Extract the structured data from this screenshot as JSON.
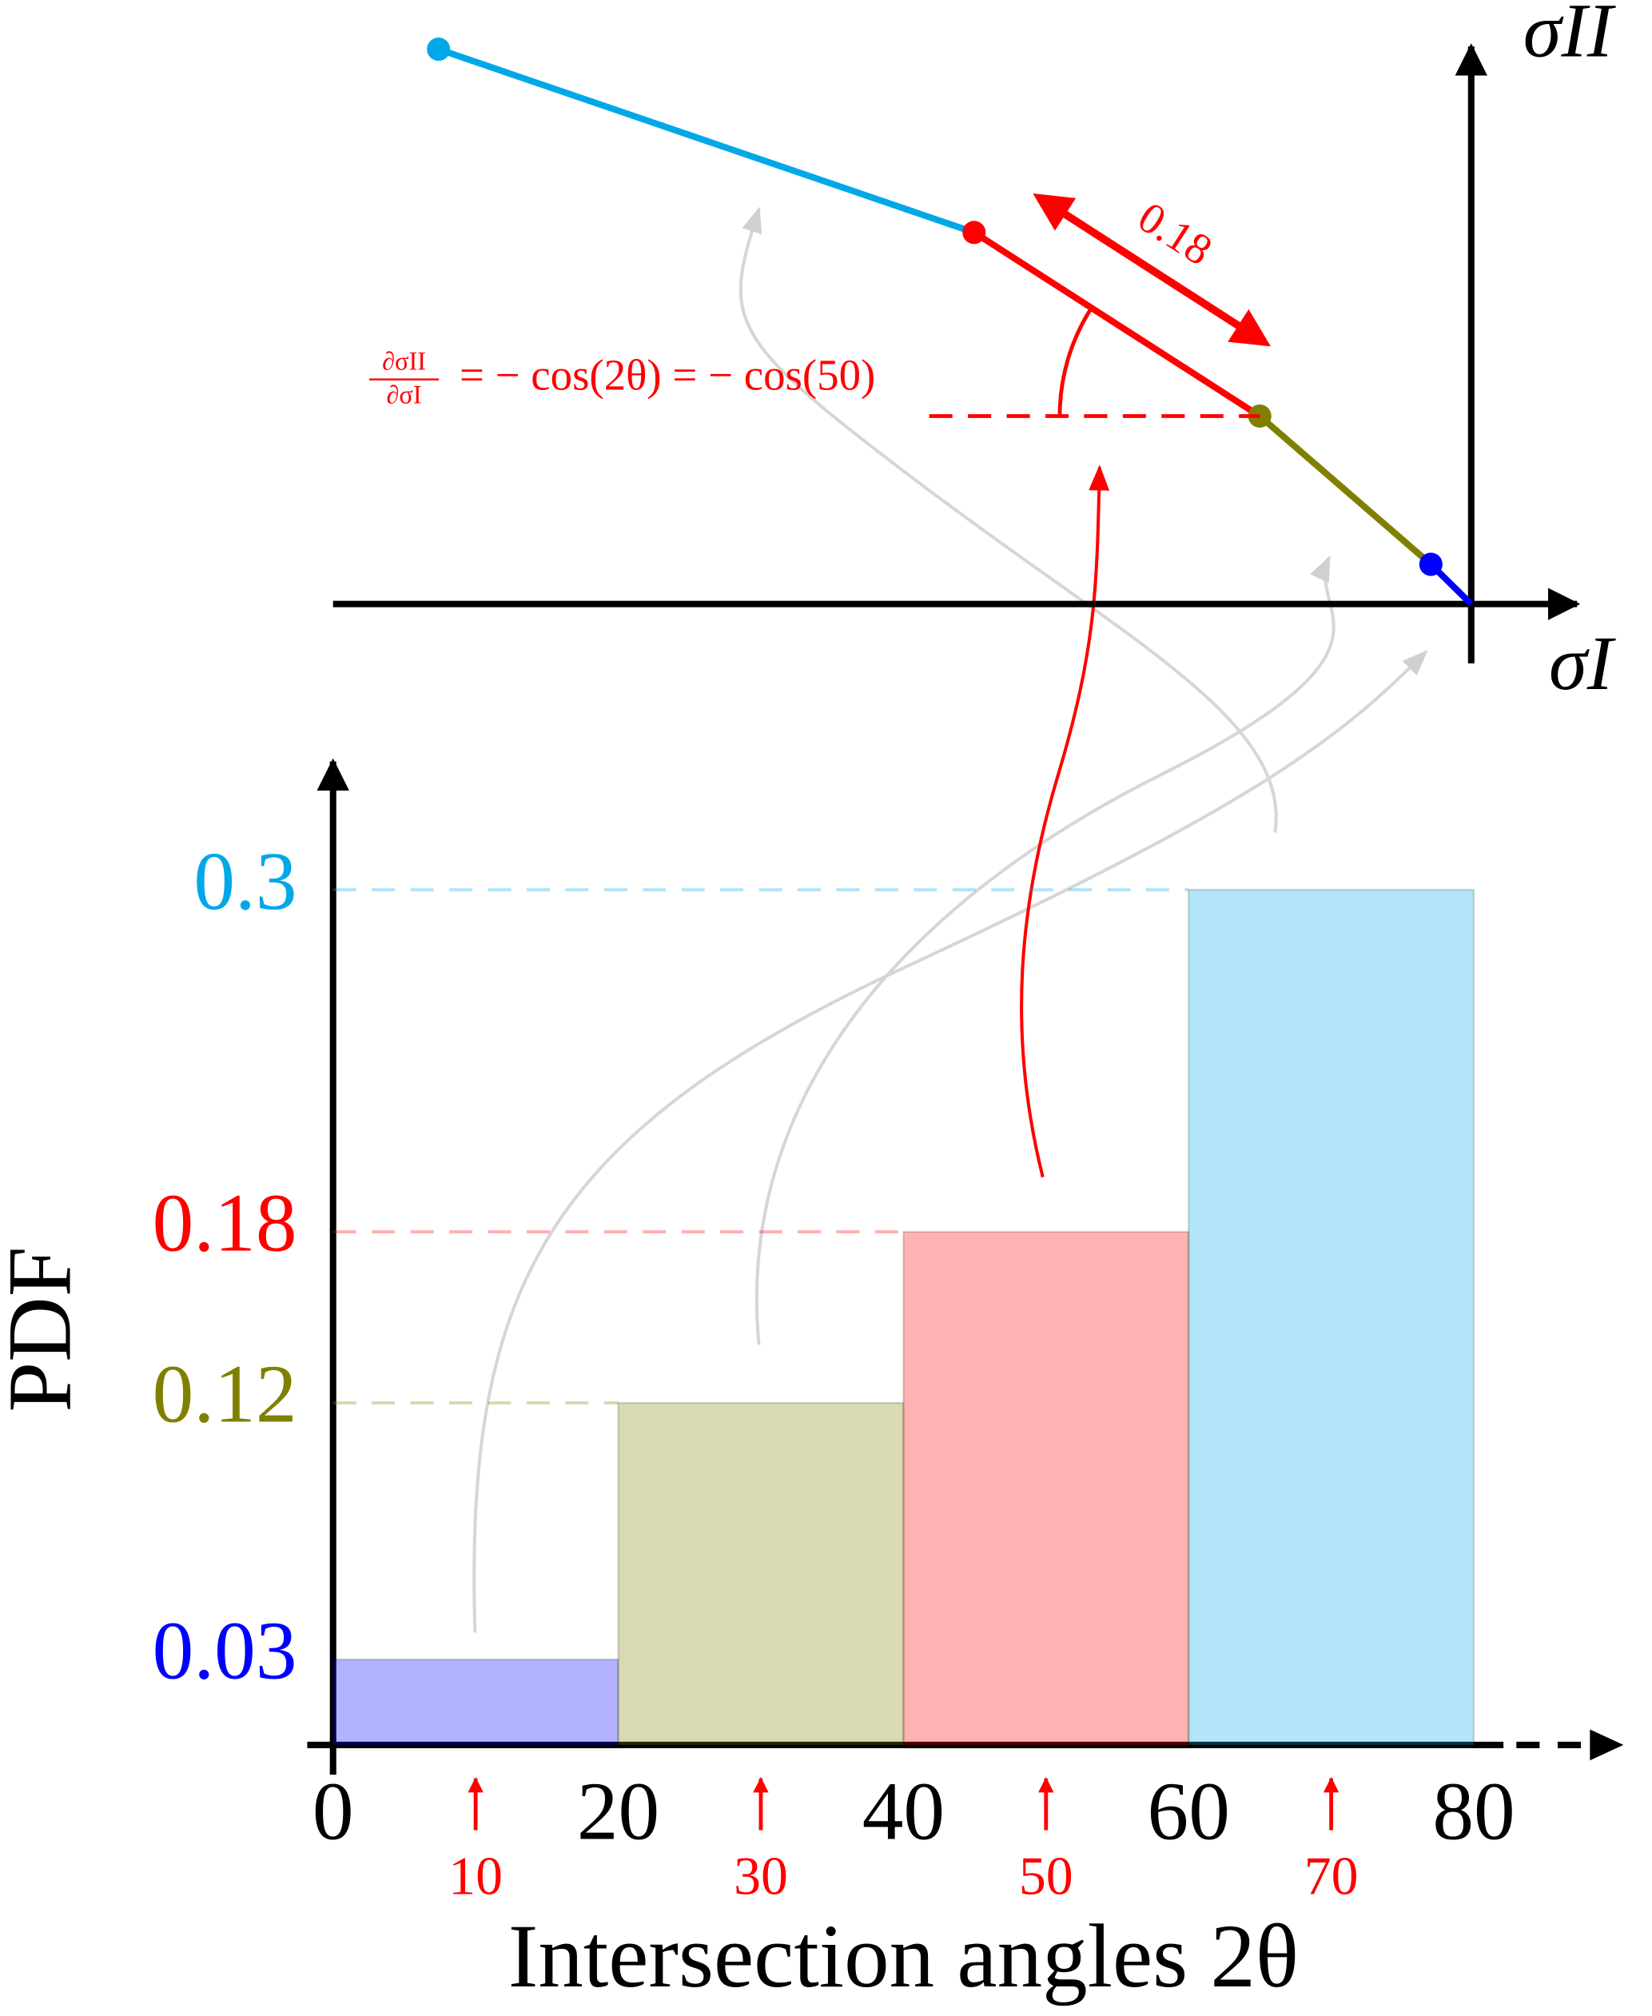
{
  "chart_data": {
    "type": "histogram",
    "xlabel": "Intersection angles 2θ",
    "ylabel": "PDF",
    "bins": [
      0,
      20,
      40,
      60,
      80
    ],
    "values": [
      0.03,
      0.12,
      0.18,
      0.3
    ],
    "colors": [
      "#0000ff",
      "#808000",
      "#ff0000",
      "#00a8e8"
    ],
    "bin_centers": [
      10,
      30,
      50,
      70
    ],
    "xlim": [
      0,
      80
    ],
    "xticks": [
      0,
      20,
      40,
      60,
      80
    ],
    "ylim": [
      0,
      0.345
    ],
    "yticks": [
      0.03,
      0.12,
      0.18,
      0.3
    ],
    "stress_axes": {
      "x_label": "σI",
      "y_label": "σII"
    },
    "formula": {
      "numerator": "∂σII",
      "denominator": "∂σI",
      "rhs": "= − cos(2θ) = − cos(50)"
    }
  }
}
